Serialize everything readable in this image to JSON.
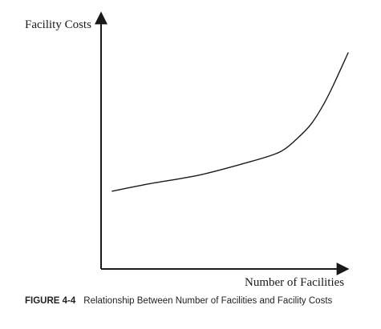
{
  "figure": {
    "number": "FIGURE 4-4",
    "caption": "Relationship Between Number of Facilities and Facility Costs"
  },
  "chart_data": {
    "type": "line",
    "title": "",
    "xlabel": "Number of Facilities",
    "ylabel": "Facility Costs",
    "x_ticks": [],
    "y_ticks": [],
    "grid": false,
    "legend": "none",
    "xlim": [
      0,
      10
    ],
    "ylim": [
      0,
      10
    ],
    "series": [
      {
        "x": [
          0.45,
          2,
          4,
          6,
          7,
          7.5,
          8,
          8.5,
          9,
          9.4,
          10
        ],
        "y": [
          3.6,
          3.95,
          4.35,
          4.95,
          5.3,
          5.6,
          6.1,
          6.7,
          7.6,
          8.5,
          10
        ],
        "color": "#1a1a1a"
      }
    ]
  }
}
